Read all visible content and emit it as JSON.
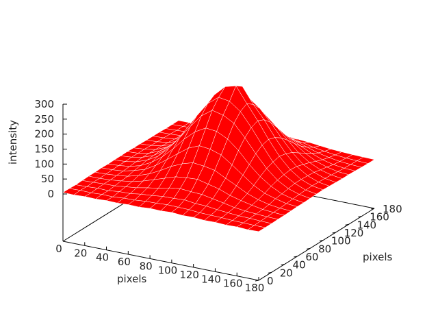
{
  "chart_data": {
    "type": "surface",
    "title": "",
    "xlabel": "pixels",
    "ylabel": "pixels",
    "zlabel": "intensity",
    "xlim": [
      0,
      180
    ],
    "ylim": [
      0,
      180
    ],
    "zlim": [
      0,
      300
    ],
    "xticks": [
      "0",
      "20",
      "40",
      "60",
      "80",
      "100",
      "120",
      "140",
      "160",
      "180"
    ],
    "yticks": [
      "0",
      "20",
      "40",
      "60",
      "80",
      "100",
      "120",
      "140",
      "160",
      "180"
    ],
    "zticks": [
      "0",
      "50",
      "100",
      "150",
      "200",
      "250",
      "300"
    ],
    "grid_x": [
      0,
      10,
      20,
      30,
      40,
      50,
      60,
      70,
      80,
      90,
      100,
      110,
      120,
      130,
      140,
      150,
      160,
      170,
      180
    ],
    "grid_y": [
      0,
      10,
      20,
      30,
      40,
      50,
      60,
      70,
      80,
      90,
      100,
      110,
      120,
      130,
      140,
      150,
      160,
      170,
      180
    ],
    "z": [
      [
        5,
        4,
        6,
        5,
        7,
        6,
        8,
        7,
        10,
        9,
        11,
        8,
        9,
        6,
        7,
        5,
        6,
        4,
        5
      ],
      [
        5,
        6,
        5,
        7,
        6,
        9,
        10,
        13,
        14,
        16,
        15,
        14,
        11,
        10,
        9,
        7,
        6,
        5,
        5
      ],
      [
        4,
        5,
        7,
        6,
        10,
        11,
        16,
        19,
        23,
        24,
        26,
        21,
        20,
        15,
        12,
        9,
        8,
        6,
        5
      ],
      [
        5,
        6,
        8,
        9,
        13,
        17,
        24,
        30,
        38,
        43,
        40,
        38,
        31,
        24,
        16,
        12,
        9,
        7,
        6
      ],
      [
        6,
        6,
        8,
        12,
        17,
        26,
        38,
        50,
        62,
        66,
        68,
        59,
        50,
        36,
        26,
        18,
        11,
        8,
        6
      ],
      [
        6,
        7,
        10,
        14,
        24,
        37,
        55,
        76,
        92,
        103,
        99,
        92,
        73,
        55,
        36,
        23,
        14,
        9,
        7
      ],
      [
        7,
        8,
        11,
        20,
        31,
        52,
        78,
        105,
        131,
        146,
        142,
        130,
        104,
        77,
        50,
        31,
        20,
        11,
        8
      ],
      [
        6,
        9,
        13,
        23,
        41,
        67,
        101,
        140,
        172,
        192,
        188,
        170,
        139,
        99,
        66,
        41,
        23,
        13,
        8
      ],
      [
        7,
        9,
        15,
        28,
        48,
        82,
        124,
        170,
        212,
        238,
        229,
        209,
        168,
        122,
        80,
        48,
        27,
        15,
        9
      ],
      [
        7,
        10,
        17,
        30,
        54,
        90,
        139,
        192,
        240,
        268,
        262,
        235,
        189,
        137,
        88,
        53,
        31,
        16,
        10
      ],
      [
        8,
        10,
        17,
        32,
        56,
        95,
        145,
        200,
        255,
        290,
        300,
        248,
        198,
        143,
        94,
        56,
        31,
        17,
        11
      ],
      [
        7,
        10,
        16,
        31,
        53,
        90,
        138,
        190,
        236,
        272,
        285,
        232,
        188,
        136,
        89,
        54,
        30,
        16,
        10
      ],
      [
        7,
        9,
        15,
        27,
        47,
        81,
        122,
        169,
        210,
        240,
        233,
        206,
        166,
        121,
        80,
        47,
        28,
        15,
        9
      ],
      [
        6,
        8,
        13,
        24,
        40,
        66,
        101,
        138,
        170,
        191,
        188,
        168,
        136,
        100,
        65,
        40,
        23,
        13,
        8
      ],
      [
        6,
        8,
        11,
        19,
        31,
        51,
        77,
        105,
        130,
        144,
        142,
        128,
        103,
        76,
        51,
        31,
        19,
        11,
        8
      ],
      [
        6,
        7,
        9,
        14,
        23,
        37,
        55,
        75,
        92,
        102,
        100,
        90,
        74,
        54,
        37,
        23,
        14,
        9,
        7
      ],
      [
        5,
        6,
        8,
        11,
        17,
        25,
        37,
        49,
        61,
        67,
        65,
        60,
        49,
        37,
        25,
        17,
        11,
        8,
        6
      ],
      [
        5,
        6,
        7,
        9,
        12,
        17,
        23,
        31,
        37,
        42,
        40,
        37,
        31,
        23,
        17,
        12,
        9,
        7,
        5
      ],
      [
        5,
        5,
        6,
        7,
        9,
        11,
        15,
        19,
        22,
        24,
        24,
        22,
        19,
        15,
        11,
        9,
        7,
        6,
        5
      ]
    ],
    "colors": {
      "surface": "#ff0000",
      "mesh": "#ffffff",
      "axes": "#000000"
    },
    "grid": false,
    "legend": "none"
  }
}
